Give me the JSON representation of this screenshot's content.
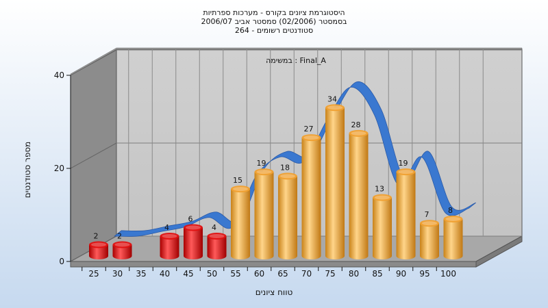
{
  "chart_data": {
    "type": "bar",
    "title_lines": [
      "היסטוגרמת ציונים בקורס - מערכות ספרתיות",
      "בסמסטר  (02/2006)  סמסטר אביב 2006/07",
      "264 - סטודנטים רשומים"
    ],
    "annotation": "במשימה : Final_A",
    "xlabel": "טווח ציונים",
    "ylabel": "מספר סטודנטים",
    "ylim": [
      0,
      40
    ],
    "yticks": [
      0,
      20,
      40
    ],
    "categories": [
      "25",
      "30",
      "35",
      "40",
      "45",
      "50",
      "55",
      "60",
      "65",
      "70",
      "75",
      "80",
      "85",
      "90",
      "95",
      "100"
    ],
    "series": [
      {
        "values": [
          2,
          2,
          null,
          4,
          6,
          4,
          15,
          19,
          18,
          27,
          34,
          28,
          13,
          19,
          7,
          8
        ],
        "value_labels": [
          "2",
          "2",
          "",
          "4",
          "6",
          "4",
          "15",
          "19",
          "18",
          "27",
          "34",
          "28",
          "13",
          "19",
          "7",
          "8"
        ],
        "colors": [
          "#e01010",
          "#e01010",
          "",
          "#e01010",
          "#e01010",
          "#e01010",
          "#f0a030",
          "#f0a030",
          "#f0a030",
          "#f0a030",
          "#f0a030",
          "#f0a030",
          "#f0a030",
          "#f0a030",
          "#f0a030",
          "#f0a030"
        ]
      }
    ],
    "trend_line_color": "#3a78d0",
    "grid": true
  }
}
